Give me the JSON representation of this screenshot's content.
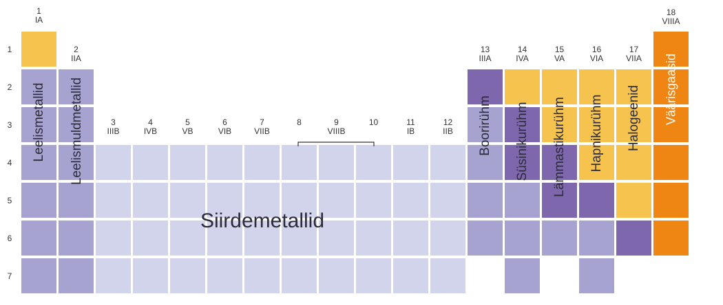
{
  "groups": [
    {
      "num": "1",
      "roman": "IA"
    },
    {
      "num": "2",
      "roman": "IIA"
    },
    {
      "num": "3",
      "roman": "IIIB"
    },
    {
      "num": "4",
      "roman": "IVB"
    },
    {
      "num": "5",
      "roman": "VB"
    },
    {
      "num": "6",
      "roman": "VIB"
    },
    {
      "num": "7",
      "roman": "VIIB"
    },
    {
      "num": "8",
      "roman": ""
    },
    {
      "num": "9",
      "roman": "VIIIB"
    },
    {
      "num": "10",
      "roman": ""
    },
    {
      "num": "11",
      "roman": "IB"
    },
    {
      "num": "12",
      "roman": "IIB"
    },
    {
      "num": "13",
      "roman": "IIIA"
    },
    {
      "num": "14",
      "roman": "IVA"
    },
    {
      "num": "15",
      "roman": "VA"
    },
    {
      "num": "16",
      "roman": "VIA"
    },
    {
      "num": "17",
      "roman": "VIIA"
    },
    {
      "num": "18",
      "roman": "VIIIA"
    }
  ],
  "periods": [
    "1",
    "2",
    "3",
    "4",
    "5",
    "6",
    "7"
  ],
  "family_labels": {
    "alkali": "Leelismetallid",
    "alkaline_earth": "Leelismuldmetallid",
    "transition": "Siirdemetallid",
    "boron": "Boorirühm",
    "carbon": "Süsinikurühm",
    "nitrogen": "Lämmastikurühm",
    "oxygen": "Hapnikurühm",
    "halogen": "Halogeenid",
    "noble": "Väärisgaasid"
  },
  "colors": {
    "yellow": "#f7c34f",
    "purple_light": "#a7a3d1",
    "purple_dark": "#7e67ad",
    "transition": "#d2d4ec",
    "orange": "#ef8512",
    "text_dark": "#2b2b3a",
    "text_light": "#ffffff"
  }
}
